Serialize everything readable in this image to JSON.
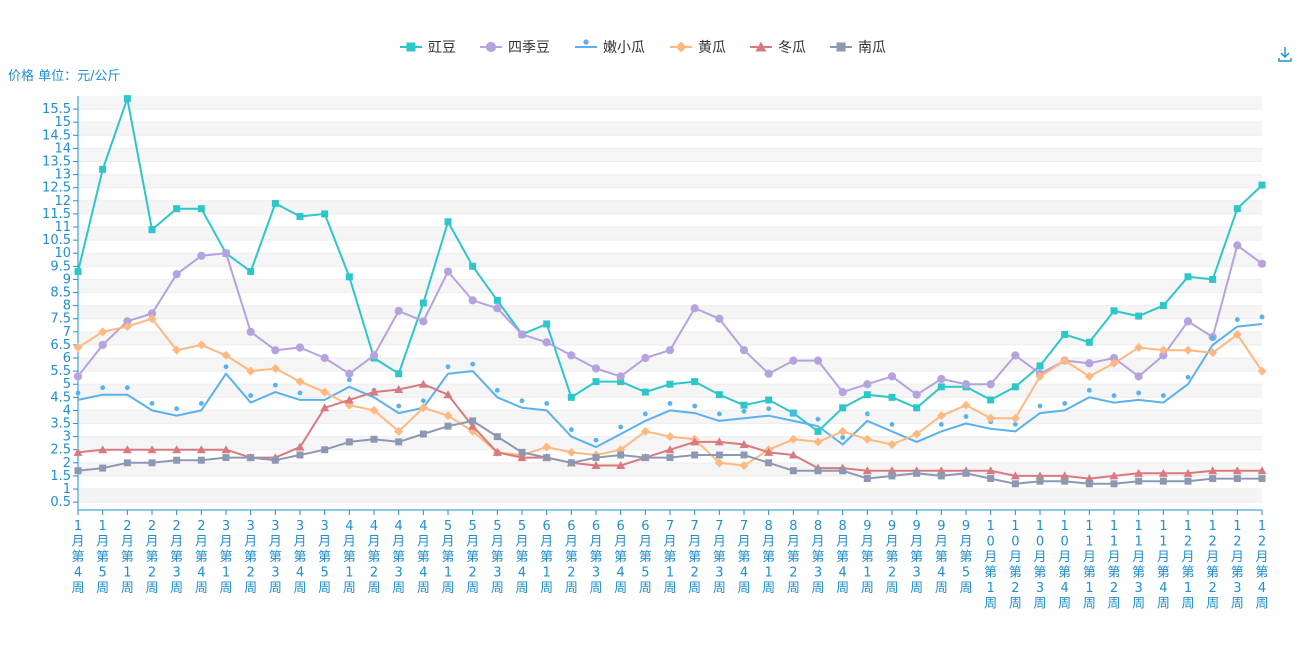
{
  "toolbar": {
    "download_icon": "download-icon"
  },
  "colors": {
    "axis": "#1f8fd0",
    "band_odd": "#f5f5f5",
    "band_even": "#ffffff"
  },
  "chart_data": {
    "type": "line",
    "ylabel": "价格 单位：元/公斤",
    "ylim": [
      0.2,
      16.0
    ],
    "yticks": [
      0.5,
      1,
      1.5,
      2,
      2.5,
      3,
      3.5,
      4,
      4.5,
      5,
      5.5,
      6,
      6.5,
      7,
      7.5,
      8,
      8.5,
      9,
      9.5,
      10,
      10.5,
      11,
      11.5,
      12,
      12.5,
      13,
      13.5,
      14,
      14.5,
      15,
      15.5
    ],
    "ytick_labels": [
      "0.5",
      "1",
      "1.5",
      "2",
      "2.5",
      "3",
      "3.5",
      "4",
      "4.5",
      "5",
      "5.5",
      "6",
      "6.5",
      "7",
      "7.5",
      "8",
      "8.5",
      "9",
      "9.5",
      "10",
      "10.5",
      "11",
      "11.5",
      "12",
      "12.5",
      "13",
      "13.5",
      "14",
      "14.5",
      "15",
      "15.5"
    ],
    "legend_position": "top-center",
    "categories": [
      "1月第4周",
      "1月第5周",
      "2月第1周",
      "2月第2周",
      "2月第3周",
      "2月第4周",
      "3月第1周",
      "3月第2周",
      "3月第3周",
      "3月第4周",
      "3月第5周",
      "4月第1周",
      "4月第2周",
      "4月第3周",
      "4月第4周",
      "5月第1周",
      "5月第2周",
      "5月第3周",
      "5月第4周",
      "6月第1周",
      "6月第2周",
      "6月第3周",
      "6月第4周",
      "6月第5周",
      "7月第1周",
      "7月第2周",
      "7月第3周",
      "7月第4周",
      "8月第1周",
      "8月第2周",
      "8月第3周",
      "8月第4周",
      "9月第1周",
      "9月第2周",
      "9月第3周",
      "9月第4周",
      "9月第5周",
      "10月第1周",
      "10月第2周",
      "10月第3周",
      "10月第4周",
      "11月第1周",
      "11月第2周",
      "11月第3周",
      "11月第4周",
      "12月第1周",
      "12月第2周",
      "12月第3周",
      "12月第4周"
    ],
    "series": [
      {
        "name": "豇豆",
        "color": "#2ec7c9",
        "symbol": "square",
        "values": [
          9.3,
          13.2,
          15.9,
          10.9,
          11.7,
          11.7,
          10.0,
          9.3,
          11.9,
          11.4,
          11.5,
          9.1,
          6.0,
          5.4,
          8.1,
          11.2,
          9.5,
          8.2,
          6.9,
          7.3,
          4.5,
          5.1,
          5.1,
          4.7,
          5.0,
          5.1,
          4.6,
          4.2,
          4.4,
          3.9,
          3.2,
          4.1,
          4.6,
          4.5,
          4.1,
          4.9,
          4.9,
          4.4,
          4.9,
          5.7,
          6.9,
          6.6,
          7.8,
          7.6,
          8.0,
          9.1,
          9.0,
          11.7,
          12.6
        ]
      },
      {
        "name": "四季豆",
        "color": "#b6a2de",
        "symbol": "circle",
        "values": [
          5.3,
          6.5,
          7.4,
          7.7,
          9.2,
          9.9,
          10.0,
          7.0,
          6.3,
          6.4,
          6.0,
          5.4,
          6.1,
          7.8,
          7.4,
          9.3,
          8.2,
          7.9,
          6.9,
          6.6,
          6.1,
          5.6,
          5.3,
          6.0,
          6.3,
          7.9,
          7.5,
          6.3,
          5.4,
          5.9,
          5.9,
          4.7,
          5.0,
          5.3,
          4.6,
          5.2,
          5.0,
          5.0,
          6.1,
          5.4,
          5.9,
          5.8,
          6.0,
          5.3,
          6.1,
          7.4,
          6.8,
          10.3,
          9.6
        ]
      },
      {
        "name": "嫩小瓜",
        "color": "#5ab1ef",
        "symbol": "pin",
        "values": [
          4.4,
          4.6,
          4.6,
          4.0,
          3.8,
          4.0,
          5.4,
          4.3,
          4.7,
          4.4,
          4.4,
          4.9,
          4.5,
          3.9,
          4.1,
          5.4,
          5.5,
          4.5,
          4.1,
          4.0,
          3.0,
          2.6,
          3.1,
          3.6,
          4.0,
          3.9,
          3.6,
          3.7,
          3.8,
          3.6,
          3.4,
          2.7,
          3.6,
          3.2,
          2.8,
          3.2,
          3.5,
          3.3,
          3.2,
          3.9,
          4.0,
          4.5,
          4.3,
          4.4,
          4.3,
          5.0,
          6.5,
          7.2,
          7.3
        ]
      },
      {
        "name": "黄瓜",
        "color": "#ffb980",
        "symbol": "diamond",
        "values": [
          6.4,
          7.0,
          7.2,
          7.5,
          6.3,
          6.5,
          6.1,
          5.5,
          5.6,
          5.1,
          4.7,
          4.2,
          4.0,
          3.2,
          4.1,
          3.8,
          3.2,
          2.4,
          2.3,
          2.6,
          2.4,
          2.3,
          2.5,
          3.2,
          3.0,
          2.9,
          2.0,
          1.9,
          2.5,
          2.9,
          2.8,
          3.2,
          2.9,
          2.7,
          3.1,
          3.8,
          4.2,
          3.7,
          3.7,
          5.3,
          5.9,
          5.3,
          5.8,
          6.4,
          6.3,
          6.3,
          6.2,
          6.9,
          5.5
        ]
      },
      {
        "name": "冬瓜",
        "color": "#d87a80",
        "symbol": "triangle",
        "values": [
          2.4,
          2.5,
          2.5,
          2.5,
          2.5,
          2.5,
          2.5,
          2.2,
          2.2,
          2.6,
          4.1,
          4.4,
          4.7,
          4.8,
          5.0,
          4.6,
          3.4,
          2.4,
          2.2,
          2.2,
          2.0,
          1.9,
          1.9,
          2.2,
          2.5,
          2.8,
          2.8,
          2.7,
          2.4,
          2.3,
          1.8,
          1.8,
          1.7,
          1.7,
          1.7,
          1.7,
          1.7,
          1.7,
          1.5,
          1.5,
          1.5,
          1.4,
          1.5,
          1.6,
          1.6,
          1.6,
          1.7,
          1.7,
          1.7
        ]
      },
      {
        "name": "南瓜",
        "color": "#8d98b3",
        "symbol": "square",
        "values": [
          1.7,
          1.8,
          2.0,
          2.0,
          2.1,
          2.1,
          2.2,
          2.2,
          2.1,
          2.3,
          2.5,
          2.8,
          2.9,
          2.8,
          3.1,
          3.4,
          3.6,
          3.0,
          2.4,
          2.2,
          2.0,
          2.2,
          2.3,
          2.2,
          2.2,
          2.3,
          2.3,
          2.3,
          2.0,
          1.7,
          1.7,
          1.7,
          1.4,
          1.5,
          1.6,
          1.5,
          1.6,
          1.4,
          1.2,
          1.3,
          1.3,
          1.2,
          1.2,
          1.3,
          1.3,
          1.3,
          1.4,
          1.4,
          1.4
        ]
      }
    ]
  }
}
